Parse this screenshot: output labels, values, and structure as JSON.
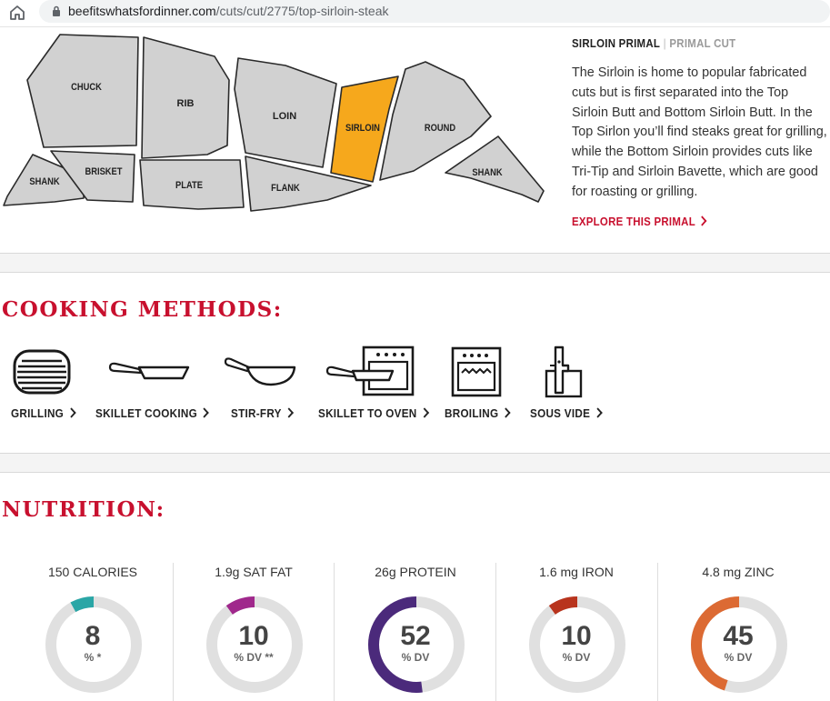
{
  "browser": {
    "url_host": "beefitswhatsfordinner.com",
    "url_path": "/cuts/cut/2775/top-sirloin-steak"
  },
  "primal_map": {
    "labels": {
      "chuck": "CHUCK",
      "rib": "RIB",
      "loin": "LOIN",
      "sirloin": "SIRLOIN",
      "round": "ROUND",
      "shank_front": "SHANK",
      "brisket": "BRISKET",
      "plate": "PLATE",
      "flank": "FLANK",
      "shank_back": "SHANK"
    },
    "highlight_color": "#f6a81c",
    "base_color": "#d1d1d1"
  },
  "primal_info": {
    "name": "SIRLOIN PRIMAL",
    "separator": "|",
    "kind": "PRIMAL CUT",
    "description": "The Sirloin is home to popular fabricated cuts but is first separated into the Top Sirloin Butt and Bottom Sirloin Butt. In the Top Sirlon you’ll find steaks great for grilling, while the Bottom Sirloin provides cuts like Tri-Tip and Sirloin Bavette, which are good for roasting or grilling.",
    "explore_link": "EXPLORE THIS PRIMAL"
  },
  "cooking": {
    "heading": "COOKING METHODS:",
    "methods": [
      {
        "label": "GRILLING",
        "icon": "grill-icon"
      },
      {
        "label": "SKILLET COOKING",
        "icon": "skillet-icon"
      },
      {
        "label": "STIR-FRY",
        "icon": "wok-icon"
      },
      {
        "label": "SKILLET TO OVEN",
        "icon": "skillet-oven-icon"
      },
      {
        "label": "BROILING",
        "icon": "broiler-icon"
      },
      {
        "label": "SOUS VIDE",
        "icon": "sous-vide-icon"
      }
    ]
  },
  "nutrition": {
    "heading": "NUTRITION:",
    "items": [
      {
        "title": "150 CALORIES",
        "value": "8",
        "unit": "% *",
        "percent": 8,
        "color": "#2aa6a6"
      },
      {
        "title": "1.9g SAT FAT",
        "value": "10",
        "unit": "% DV **",
        "percent": 10,
        "color": "#a0288c"
      },
      {
        "title": "26g PROTEIN",
        "value": "52",
        "unit": "% DV",
        "percent": 52,
        "color": "#4b2a7b"
      },
      {
        "title": "1.6 mg IRON",
        "value": "10",
        "unit": "% DV",
        "percent": 10,
        "color": "#b8341d"
      },
      {
        "title": "4.8 mg ZINC",
        "value": "45",
        "unit": "% DV",
        "percent": 45,
        "color": "#dc6a33"
      }
    ]
  }
}
